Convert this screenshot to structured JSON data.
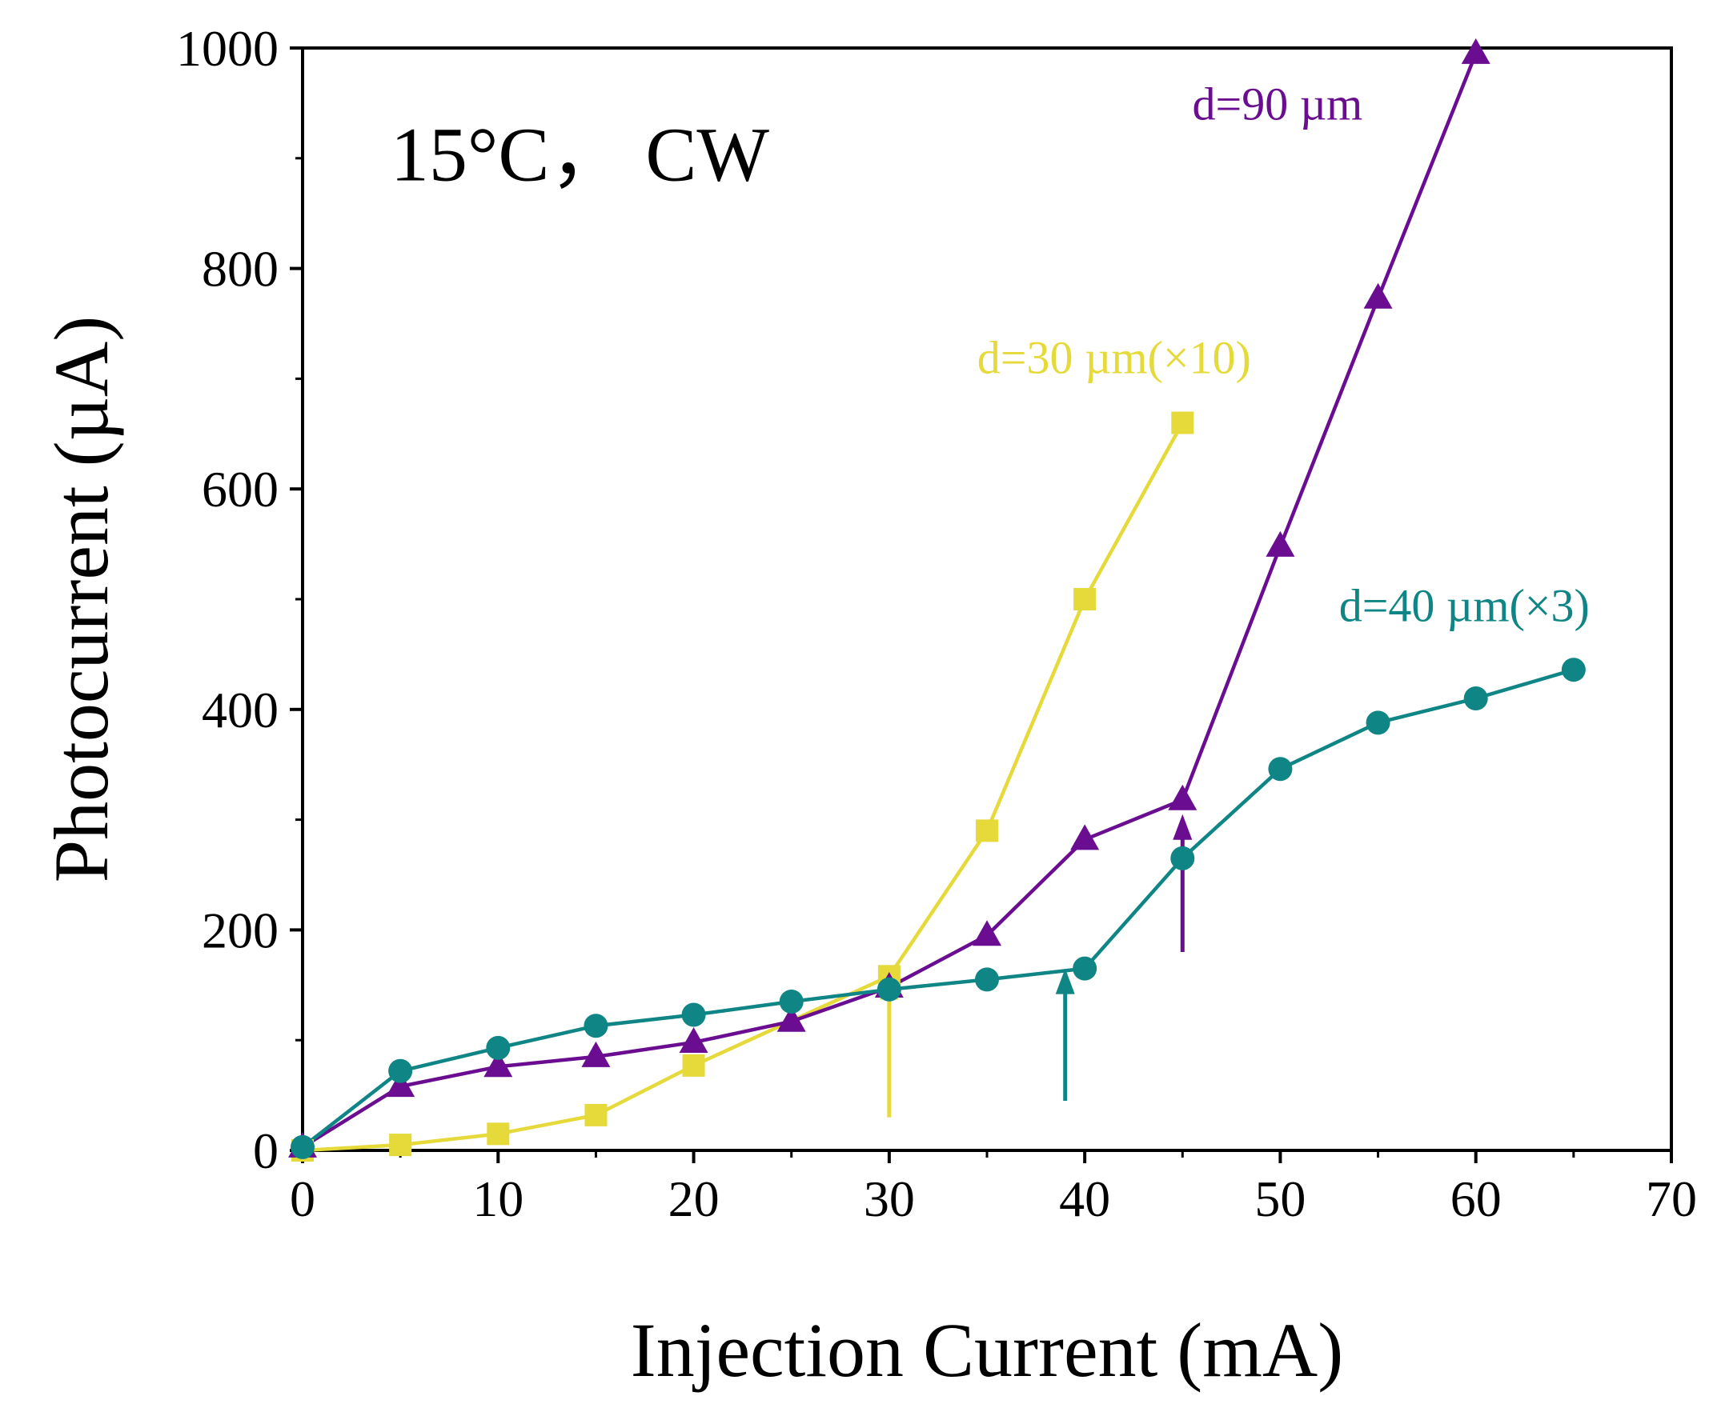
{
  "chart_data": {
    "type": "line",
    "title": "",
    "xlabel": "Injection Current (mA)",
    "ylabel": "Photocurrent (µA)",
    "xlim": [
      0,
      70
    ],
    "ylim": [
      0,
      1000
    ],
    "x_ticks": [
      0,
      10,
      20,
      30,
      40,
      50,
      60,
      70
    ],
    "y_ticks": [
      0,
      200,
      400,
      600,
      800,
      1000
    ],
    "grid": false,
    "series": [
      {
        "name": "d=30 µm(×10)",
        "color": "#e6d93a",
        "marker": "square",
        "x": [
          0,
          5,
          10,
          15,
          20,
          30,
          35,
          40,
          45
        ],
        "y": [
          0,
          5,
          15,
          32,
          77,
          158,
          290,
          500,
          660
        ]
      },
      {
        "name": "d=90 µm",
        "color": "#6a0d91",
        "marker": "triangle",
        "x": [
          0,
          5,
          10,
          15,
          20,
          25,
          30,
          35,
          40,
          45,
          50,
          55,
          60
        ],
        "y": [
          3,
          58,
          76,
          85,
          98,
          117,
          148,
          195,
          282,
          318,
          548,
          773,
          995
        ]
      },
      {
        "name": "d=40 µm(×3)",
        "color": "#0f8585",
        "marker": "circle",
        "x": [
          0,
          5,
          10,
          15,
          20,
          25,
          30,
          35,
          40,
          45,
          50,
          55,
          60,
          65
        ],
        "y": [
          3,
          72,
          93,
          113,
          123,
          135,
          146,
          155,
          165,
          265,
          346,
          388,
          410,
          436
        ]
      }
    ],
    "annotations": [
      {
        "text": "15°C， CW",
        "x": 4.5,
        "y": 880,
        "color": "#000000",
        "size": "large"
      },
      {
        "text": "d=30 µm(×10)",
        "x": 34.5,
        "y": 705,
        "color": "#e6d93a",
        "size": "small"
      },
      {
        "text": "d=90 µm",
        "x": 45.5,
        "y": 935,
        "color": "#6a0d91",
        "size": "small"
      },
      {
        "text": "d=40 µm(×3)",
        "x": 53,
        "y": 480,
        "color": "#0f8585",
        "size": "small"
      }
    ],
    "arrows": [
      {
        "x": 30,
        "y_from": 30,
        "y_to": 160,
        "color": "#e6d93a"
      },
      {
        "x": 39,
        "y_from": 45,
        "y_to": 165,
        "color": "#0f8585"
      },
      {
        "x": 45,
        "y_from": 180,
        "y_to": 305,
        "color": "#6a0d91"
      }
    ]
  }
}
